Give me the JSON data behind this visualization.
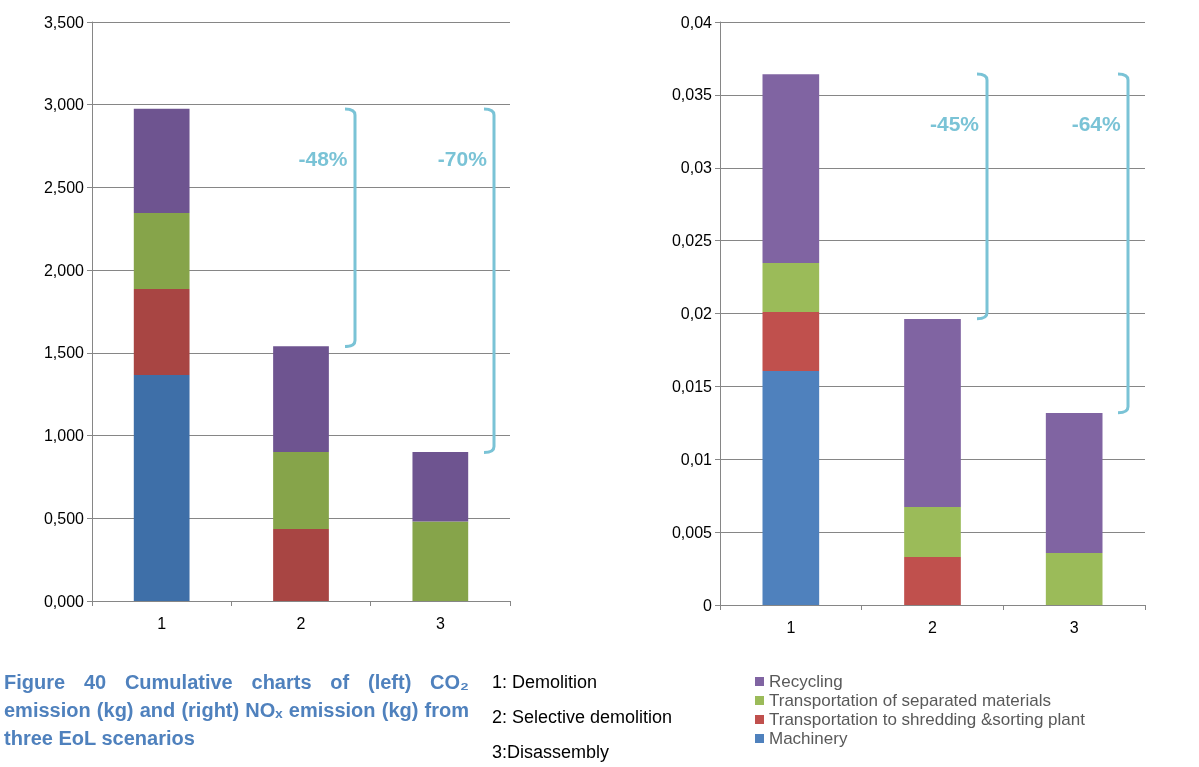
{
  "chart_data": [
    {
      "type": "bar",
      "stacked": true,
      "categories": [
        "1",
        "2",
        "3"
      ],
      "series": [
        {
          "color": "#3e6fa8",
          "values": [
            1.366,
            null,
            null
          ]
        },
        {
          "color": "#a84543",
          "values": [
            0.52,
            0.435,
            null
          ]
        },
        {
          "color": "#86a44a",
          "values": [
            0.46,
            0.465,
            0.48
          ]
        },
        {
          "color": "#6e5490",
          "values": [
            0.63,
            0.64,
            0.42
          ]
        }
      ],
      "ylim": [
        0,
        3.5
      ],
      "yticks": [
        {
          "value": 0,
          "label": "0,000"
        },
        {
          "value": 0.5,
          "label": "0,500"
        },
        {
          "value": 1,
          "label": "1,000"
        },
        {
          "value": 1.5,
          "label": "1,500"
        },
        {
          "value": 2,
          "label": "2,000"
        },
        {
          "value": 2.5,
          "label": "2,500"
        },
        {
          "value": 3,
          "label": "3,000"
        },
        {
          "value": 3.5,
          "label": "3,500"
        }
      ],
      "grid": "y",
      "legend": false,
      "annotations": [
        "-48%",
        "-70%",
        "Figure 40 Cumulative charts of (left) CO₂ emission (kg) and (right) NOₓ emission (kg) from three EoL scenarios",
        "1: Demolition",
        "2: Selective demolition",
        "3:Disassembly"
      ]
    },
    {
      "type": "bar",
      "stacked": true,
      "categories": [
        "1",
        "2",
        "3"
      ],
      "series": [
        {
          "name": "Machinery",
          "color": "#4f81bd",
          "values": [
            0.01605,
            null,
            null
          ]
        },
        {
          "name": "Transportation to shredding &sorting plant",
          "color": "#c0504d",
          "values": [
            0.00405,
            0.00329,
            null
          ]
        },
        {
          "name": "Transportation of separated materials",
          "color": "#9bbb59",
          "values": [
            0.00336,
            0.00343,
            0.00357
          ]
        },
        {
          "name": "Recycling",
          "color": "#8064a2",
          "values": [
            0.01296,
            0.0129,
            0.0096
          ]
        }
      ],
      "ylim": [
        0,
        0.04
      ],
      "yticks": [
        0,
        {
          "value": 0.005,
          "label": "0,005"
        },
        {
          "value": 0.01,
          "label": "0,01"
        },
        {
          "value": 0.015,
          "label": "0,015"
        },
        {
          "value": 0.02,
          "label": "0,02"
        },
        {
          "value": 0.025,
          "label": "0,025"
        },
        {
          "value": 0.03,
          "label": "0,03"
        },
        {
          "value": 0.035,
          "label": "0,035"
        },
        {
          "value": 0.04,
          "label": "0,04"
        }
      ],
      "grid": "y",
      "legend": "bottom",
      "annotations": [
        "-45%",
        "-64%"
      ]
    }
  ]
}
